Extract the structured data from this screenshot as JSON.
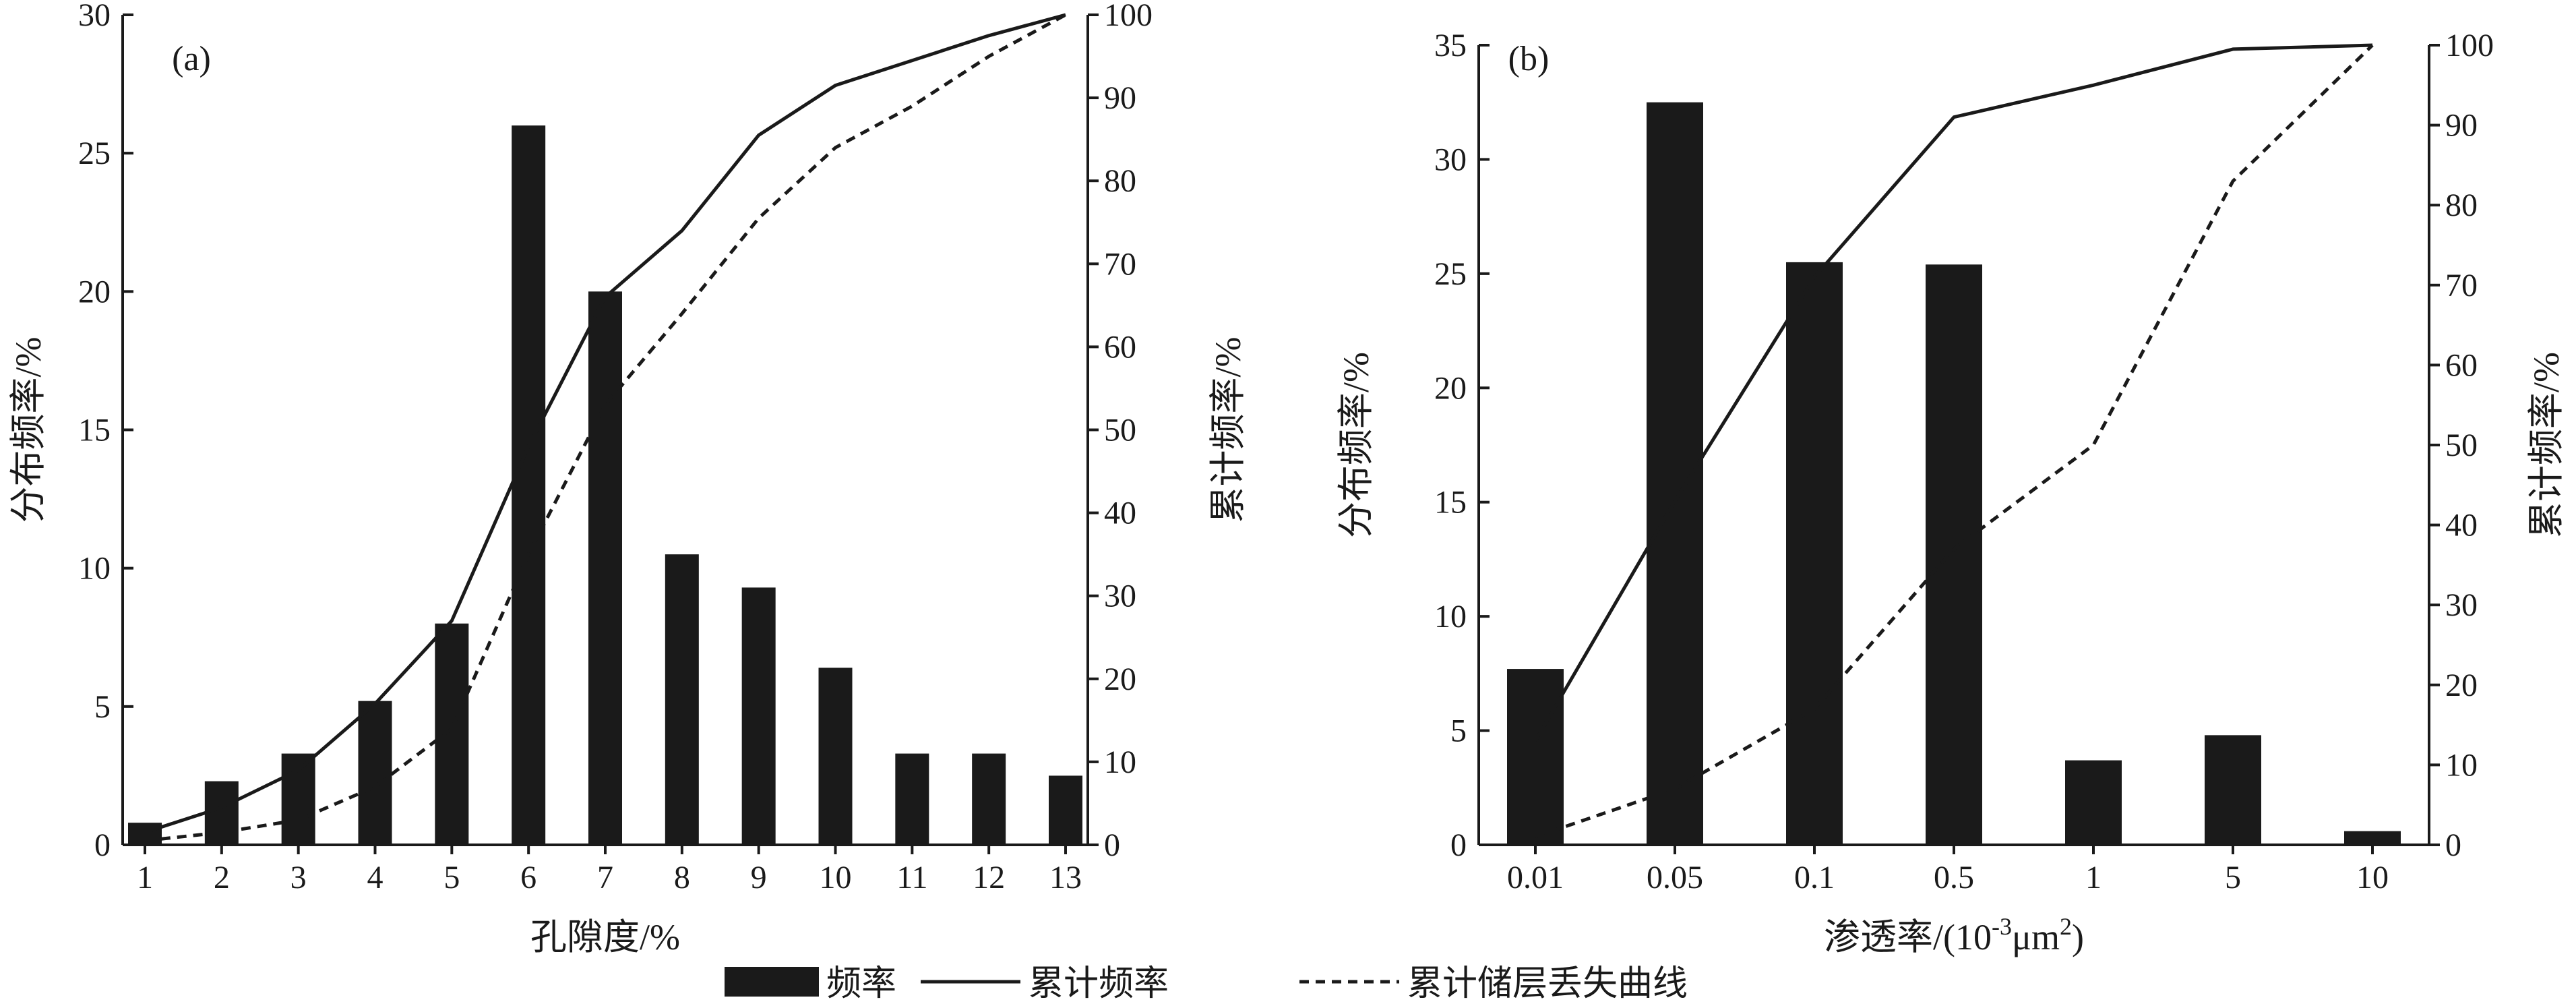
{
  "colors": {
    "ink": "#1a1a1a",
    "background": "#ffffff"
  },
  "legend": {
    "freq_label": "频率",
    "cum_label": "累计频率",
    "loss_label": "累计储层丢失曲线",
    "placement": "bottom-center"
  },
  "chart_data": [
    {
      "type": "bar",
      "panel_label": "(a)",
      "xlabel": "孔隙度/%",
      "ylabel_left": "分布频率/%",
      "ylabel_right": "累计频率/%",
      "categories": [
        "1",
        "2",
        "3",
        "4",
        "5",
        "6",
        "7",
        "8",
        "9",
        "10",
        "11",
        "12",
        "13"
      ],
      "ylim_left": [
        0,
        30
      ],
      "yticks_left": [
        0,
        5,
        10,
        15,
        20,
        25,
        30
      ],
      "ylim_right": [
        0,
        100
      ],
      "yticks_right": [
        0,
        10,
        20,
        30,
        40,
        50,
        60,
        70,
        80,
        90,
        100
      ],
      "grid": false,
      "series": [
        {
          "name": "频率",
          "kind": "bar",
          "axis": "left",
          "values": [
            0.8,
            2.3,
            3.3,
            5.2,
            8.0,
            26.0,
            20.0,
            10.5,
            9.3,
            6.4,
            3.3,
            3.3,
            2.5
          ]
        },
        {
          "name": "累计频率",
          "kind": "line",
          "style": "solid",
          "axis": "right",
          "values": [
            1.5,
            4.5,
            9,
            17,
            27,
            48,
            66,
            74,
            85.5,
            91.5,
            94.5,
            97.5,
            100
          ]
        },
        {
          "name": "累计储层丢失曲线",
          "kind": "line",
          "style": "dashed",
          "axis": "right",
          "values": [
            0.5,
            1.5,
            3,
            7,
            14,
            35,
            53,
            64,
            75.5,
            84,
            89,
            95,
            100
          ]
        }
      ]
    },
    {
      "type": "bar",
      "panel_label": "(b)",
      "xlabel": "渗透率/(10",
      "xlabel_sup": "-3",
      "xlabel_mid": "μm",
      "xlabel_sup2": "2",
      "xlabel_end": ")",
      "ylabel_left": "分布频率/%",
      "ylabel_right": "累计频率/%",
      "categories": [
        "0.01",
        "0.05",
        "0.1",
        "0.5",
        "1",
        "5",
        "10"
      ],
      "ylim_left": [
        0,
        35
      ],
      "yticks_left": [
        0,
        5,
        10,
        15,
        20,
        25,
        30,
        35
      ],
      "ylim_right": [
        0,
        100
      ],
      "yticks_right": [
        0,
        10,
        20,
        30,
        40,
        50,
        60,
        70,
        80,
        90,
        100
      ],
      "grid": false,
      "series": [
        {
          "name": "频率",
          "kind": "bar",
          "axis": "left",
          "values": [
            7.7,
            32.5,
            25.5,
            25.4,
            3.7,
            4.8,
            0.6
          ]
        },
        {
          "name": "累计频率",
          "kind": "line",
          "style": "solid",
          "axis": "right",
          "values": [
            13,
            43,
            71,
            91,
            95,
            99.5,
            100
          ]
        },
        {
          "name": "累计储层丢失曲线",
          "kind": "line",
          "style": "dashed",
          "axis": "right",
          "values": [
            1,
            7,
            17,
            37,
            50,
            83,
            100
          ]
        }
      ]
    }
  ]
}
